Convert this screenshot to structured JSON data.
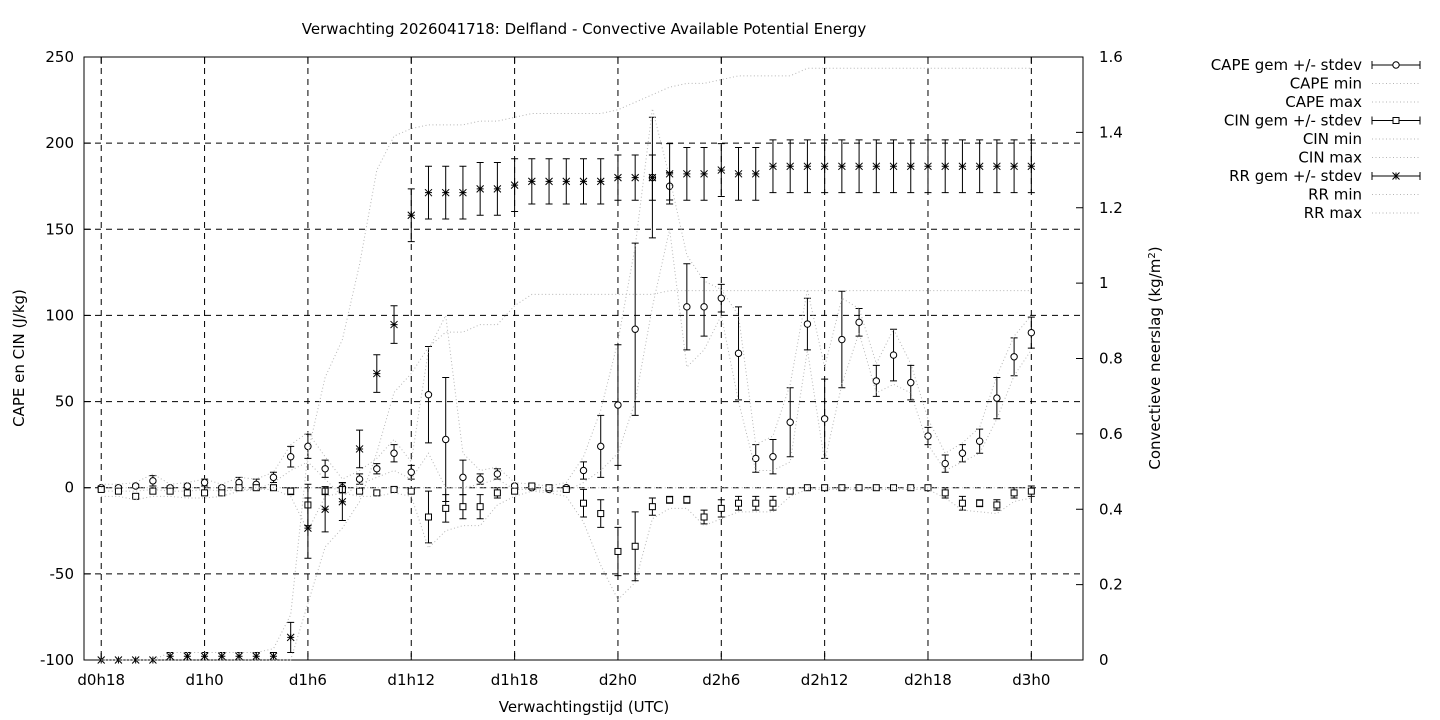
{
  "chart_data": {
    "type": "line",
    "title": "Verwachting 2026041718: Delfland - Convective Available Potential Energy",
    "xlabel": "Verwachtingstijd (UTC)",
    "ylabel": "CAPE en CIN (J/kg)",
    "y2label_main": "Convectieve neerslag (kg/m",
    "y2label_sup": "2",
    "y2label_end": ")",
    "ylim": [
      -100,
      250
    ],
    "y2lim": [
      0,
      1.6
    ],
    "x_unit": "hours since d0h18",
    "xlim": [
      -1,
      57
    ],
    "xticks": [
      {
        "x": 0,
        "label": "d0h18"
      },
      {
        "x": 6,
        "label": "d1h0"
      },
      {
        "x": 12,
        "label": "d1h6"
      },
      {
        "x": 18,
        "label": "d1h12"
      },
      {
        "x": 24,
        "label": "d1h18"
      },
      {
        "x": 30,
        "label": "d2h0"
      },
      {
        "x": 36,
        "label": "d2h6"
      },
      {
        "x": 42,
        "label": "d2h12"
      },
      {
        "x": 48,
        "label": "d2h18"
      },
      {
        "x": 54,
        "label": "d3h0"
      }
    ],
    "yticks": [
      -100,
      -50,
      0,
      50,
      100,
      150,
      200,
      250
    ],
    "y2ticks": [
      "0",
      "0.2",
      "0.4",
      "0.6",
      "0.8",
      "1",
      "1.2",
      "1.4",
      "1.6"
    ],
    "grid": true,
    "legend_position": "outside-top-right",
    "series": [
      {
        "name": "CAPE gem +/- stdev",
        "axis": "y",
        "marker": "circle",
        "mean": [
          0,
          0,
          1,
          4,
          0,
          1,
          3,
          0,
          3,
          2,
          6,
          18,
          24,
          11,
          0,
          5,
          11,
          20,
          9,
          54,
          28,
          6,
          5,
          8,
          1,
          0,
          -1,
          0,
          10,
          24,
          48,
          92,
          180,
          175,
          105,
          105,
          110,
          78,
          17,
          18,
          38,
          95,
          40,
          86,
          96,
          62,
          77,
          61,
          30,
          14,
          20,
          27,
          52,
          76,
          90
        ],
        "stdev": [
          1,
          1,
          1,
          3,
          1,
          1,
          2,
          1,
          3,
          3,
          3,
          6,
          7,
          5,
          3,
          3,
          3,
          5,
          4,
          28,
          36,
          10,
          3,
          3,
          1,
          1,
          1,
          1,
          5,
          18,
          35,
          50,
          35,
          8,
          25,
          17,
          8,
          27,
          8,
          10,
          20,
          15,
          23,
          28,
          8,
          9,
          15,
          10,
          5,
          5,
          5,
          7,
          12,
          11,
          9
        ]
      },
      {
        "name": "CAPE min",
        "axis": "y",
        "style": "dotted",
        "values": [
          -2,
          -2,
          -2,
          -1,
          -2,
          -2,
          -1,
          -2,
          -1,
          -1,
          3,
          10,
          15,
          5,
          -5,
          2,
          6,
          10,
          5,
          20,
          0,
          0,
          2,
          5,
          -1,
          -1,
          -2,
          -2,
          3,
          10,
          20,
          50,
          105,
          150,
          70,
          80,
          100,
          50,
          10,
          10,
          15,
          80,
          15,
          60,
          90,
          55,
          60,
          55,
          25,
          10,
          15,
          20,
          40,
          65,
          80
        ]
      },
      {
        "name": "CAPE max",
        "axis": "y",
        "style": "dotted",
        "values": [
          2,
          2,
          3,
          8,
          2,
          3,
          5,
          2,
          6,
          5,
          9,
          25,
          32,
          18,
          5,
          10,
          17,
          28,
          15,
          80,
          100,
          20,
          10,
          12,
          3,
          2,
          1,
          3,
          18,
          45,
          85,
          140,
          220,
          180,
          135,
          120,
          115,
          100,
          25,
          30,
          60,
          115,
          70,
          110,
          104,
          72,
          92,
          72,
          40,
          20,
          26,
          35,
          65,
          88,
          100
        ]
      },
      {
        "name": "CIN gem +/- stdev",
        "axis": "y",
        "marker": "square",
        "mean": [
          -1,
          -2,
          -5,
          -2,
          -2,
          -3,
          -3,
          -3,
          0,
          0,
          0,
          -2,
          -10,
          -2,
          -1,
          -2,
          -3,
          -1,
          -2,
          -17,
          -12,
          -11,
          -11,
          -3,
          -2,
          1,
          0,
          -1,
          -9,
          -15,
          -37,
          -34,
          -11,
          -7,
          -7,
          -17,
          -12,
          -9,
          -9,
          -9,
          -2,
          0,
          0,
          0,
          0,
          0,
          0,
          0,
          0,
          -3,
          -9,
          -9,
          -10,
          -3,
          -2
        ],
        "stdev": [
          1,
          1,
          1,
          1,
          1,
          1,
          1,
          1,
          0,
          0,
          0,
          2,
          12,
          2,
          1,
          1,
          1,
          1,
          1,
          15,
          8,
          7,
          7,
          3,
          1,
          1,
          1,
          1,
          8,
          8,
          14,
          20,
          5,
          2,
          2,
          4,
          5,
          4,
          4,
          4,
          1,
          0,
          0,
          0,
          0,
          0,
          0,
          0,
          0,
          3,
          4,
          2,
          3,
          3,
          3
        ]
      },
      {
        "name": "CIN min",
        "axis": "y",
        "style": "dotted",
        "values": [
          -5,
          -5,
          -7,
          -5,
          -5,
          -6,
          -6,
          -5,
          -2,
          -1,
          -1,
          -5,
          -25,
          -5,
          -3,
          -5,
          -5,
          -3,
          -5,
          -35,
          -25,
          -22,
          -22,
          -10,
          -5,
          -2,
          -3,
          -5,
          -20,
          -45,
          -65,
          -55,
          -18,
          -12,
          -12,
          -22,
          -18,
          -14,
          -14,
          -14,
          -5,
          -1,
          -1,
          -1,
          -1,
          -1,
          -1,
          -1,
          -1,
          -6,
          -13,
          -14,
          -15,
          -8,
          -6
        ]
      },
      {
        "name": "CIN max",
        "axis": "y",
        "style": "dotted",
        "values": [
          0,
          0,
          0,
          0,
          0,
          0,
          0,
          0,
          0,
          0,
          0,
          0,
          0,
          0,
          0,
          0,
          0,
          0,
          0,
          0,
          0,
          0,
          0,
          0,
          0,
          0,
          0,
          0,
          0,
          0,
          0,
          0,
          0,
          0,
          0,
          0,
          0,
          0,
          0,
          0,
          0,
          0,
          0,
          0,
          0,
          0,
          0,
          0,
          0,
          0,
          0,
          0,
          0,
          0,
          0
        ]
      },
      {
        "name": "RR gem +/- stdev",
        "axis": "y2",
        "marker": "star",
        "mean": [
          0,
          0,
          0,
          0,
          0.01,
          0.01,
          0.01,
          0.01,
          0.01,
          0.01,
          0.01,
          0.06,
          0.35,
          0.4,
          0.42,
          0.56,
          0.76,
          0.89,
          1.18,
          1.24,
          1.24,
          1.24,
          1.25,
          1.25,
          1.26,
          1.27,
          1.27,
          1.27,
          1.27,
          1.27,
          1.28,
          1.28,
          1.28,
          1.29,
          1.29,
          1.29,
          1.3,
          1.29,
          1.29,
          1.31,
          1.31,
          1.31,
          1.31,
          1.31,
          1.31,
          1.31,
          1.31,
          1.31,
          1.31,
          1.31,
          1.31,
          1.31,
          1.31,
          1.31,
          1.31
        ],
        "stdev": [
          0,
          0,
          0,
          0,
          0.01,
          0.01,
          0.01,
          0.01,
          0.01,
          0.01,
          0.01,
          0.04,
          0.08,
          0.06,
          0.05,
          0.05,
          0.05,
          0.05,
          0.07,
          0.07,
          0.07,
          0.07,
          0.07,
          0.07,
          0.07,
          0.06,
          0.06,
          0.06,
          0.06,
          0.06,
          0.06,
          0.06,
          0.06,
          0.08,
          0.07,
          0.07,
          0.07,
          0.07,
          0.07,
          0.07,
          0.07,
          0.07,
          0.07,
          0.07,
          0.07,
          0.07,
          0.07,
          0.07,
          0.07,
          0.07,
          0.07,
          0.07,
          0.07,
          0.07,
          0.07
        ]
      },
      {
        "name": "RR min",
        "axis": "y2",
        "style": "dotted",
        "values": [
          0,
          0,
          0,
          0,
          0,
          0,
          0,
          0,
          0,
          0,
          0,
          0,
          0.15,
          0.3,
          0.35,
          0.42,
          0.55,
          0.71,
          0.76,
          0.83,
          0.87,
          0.87,
          0.89,
          0.89,
          0.94,
          0.97,
          0.97,
          0.97,
          0.97,
          0.97,
          0.97,
          0.97,
          0.97,
          0.98,
          0.98,
          0.98,
          0.98,
          0.98,
          0.98,
          0.98,
          0.98,
          0.98,
          0.98,
          0.98,
          0.98,
          0.98,
          0.98,
          0.98,
          0.98,
          0.98,
          0.98,
          0.98,
          0.98,
          0.98,
          0.98
        ]
      },
      {
        "name": "RR max",
        "axis": "y2",
        "style": "dotted",
        "values": [
          0,
          0,
          0,
          0,
          0.02,
          0.02,
          0.02,
          0.02,
          0.02,
          0.02,
          0.03,
          0.12,
          0.55,
          0.75,
          0.85,
          1.05,
          1.3,
          1.39,
          1.41,
          1.42,
          1.42,
          1.42,
          1.43,
          1.43,
          1.44,
          1.45,
          1.45,
          1.45,
          1.45,
          1.45,
          1.46,
          1.48,
          1.5,
          1.52,
          1.53,
          1.53,
          1.54,
          1.55,
          1.55,
          1.55,
          1.55,
          1.57,
          1.57,
          1.57,
          1.57,
          1.57,
          1.57,
          1.57,
          1.57,
          1.57,
          1.57,
          1.57,
          1.57,
          1.57,
          1.57
        ]
      }
    ]
  }
}
